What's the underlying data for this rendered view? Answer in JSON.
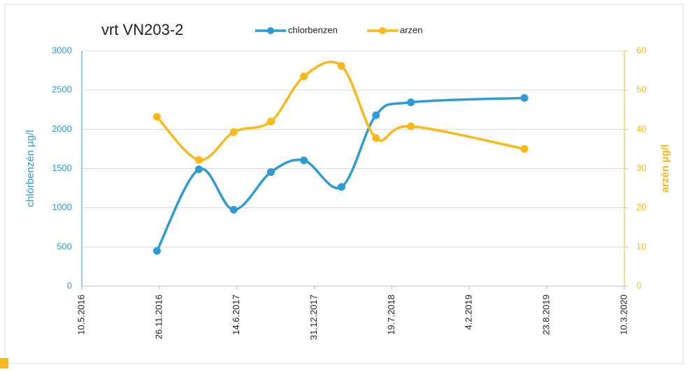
{
  "chart_data": {
    "type": "line",
    "title": "vrt VN203-2",
    "x": [
      "2016-11-20",
      "2017-03-08",
      "2017-06-06",
      "2017-09-10",
      "2017-12-04",
      "2018-03-11",
      "2018-06-08",
      "2018-09-06",
      "2019-06-26"
    ],
    "series": [
      {
        "name": "chlorbenzen",
        "color": "#2e9bd6",
        "values": [
          450,
          1490,
          975,
          1455,
          1605,
          1265,
          2180,
          2345,
          2400
        ]
      },
      {
        "name": "arzen",
        "color": "#fbb917",
        "axis": "y2",
        "values": [
          43.2,
          32.2,
          39.3,
          42.0,
          53.5,
          56.2,
          37.8,
          40.8,
          35.0
        ]
      }
    ],
    "ylabel": "chlórbenzén µg/l",
    "y2label": "arzén µg/l",
    "xlim": [
      "2016-05-10",
      "2020-03-10"
    ],
    "xticks": [
      {
        "value": "2016-05-10",
        "label": "10.5.2016"
      },
      {
        "value": "2016-11-26",
        "label": "26.11.2016"
      },
      {
        "value": "2017-06-14",
        "label": "14.6.2017"
      },
      {
        "value": "2017-12-31",
        "label": "31.12.2017"
      },
      {
        "value": "2018-07-19",
        "label": "19.7.2018"
      },
      {
        "value": "2019-02-04",
        "label": "4.2.2019"
      },
      {
        "value": "2019-08-23",
        "label": "23.8.2019"
      },
      {
        "value": "2020-03-10",
        "label": "10.3.2020"
      }
    ],
    "ylim": [
      0,
      3000
    ],
    "yticks": [
      0,
      500,
      1000,
      1500,
      2000,
      2500,
      3000
    ],
    "y2lim": [
      0,
      60
    ],
    "y2ticks": [
      0,
      10,
      20,
      30,
      40,
      50,
      60
    ],
    "grid": true,
    "smooth": true,
    "legend": "top"
  }
}
